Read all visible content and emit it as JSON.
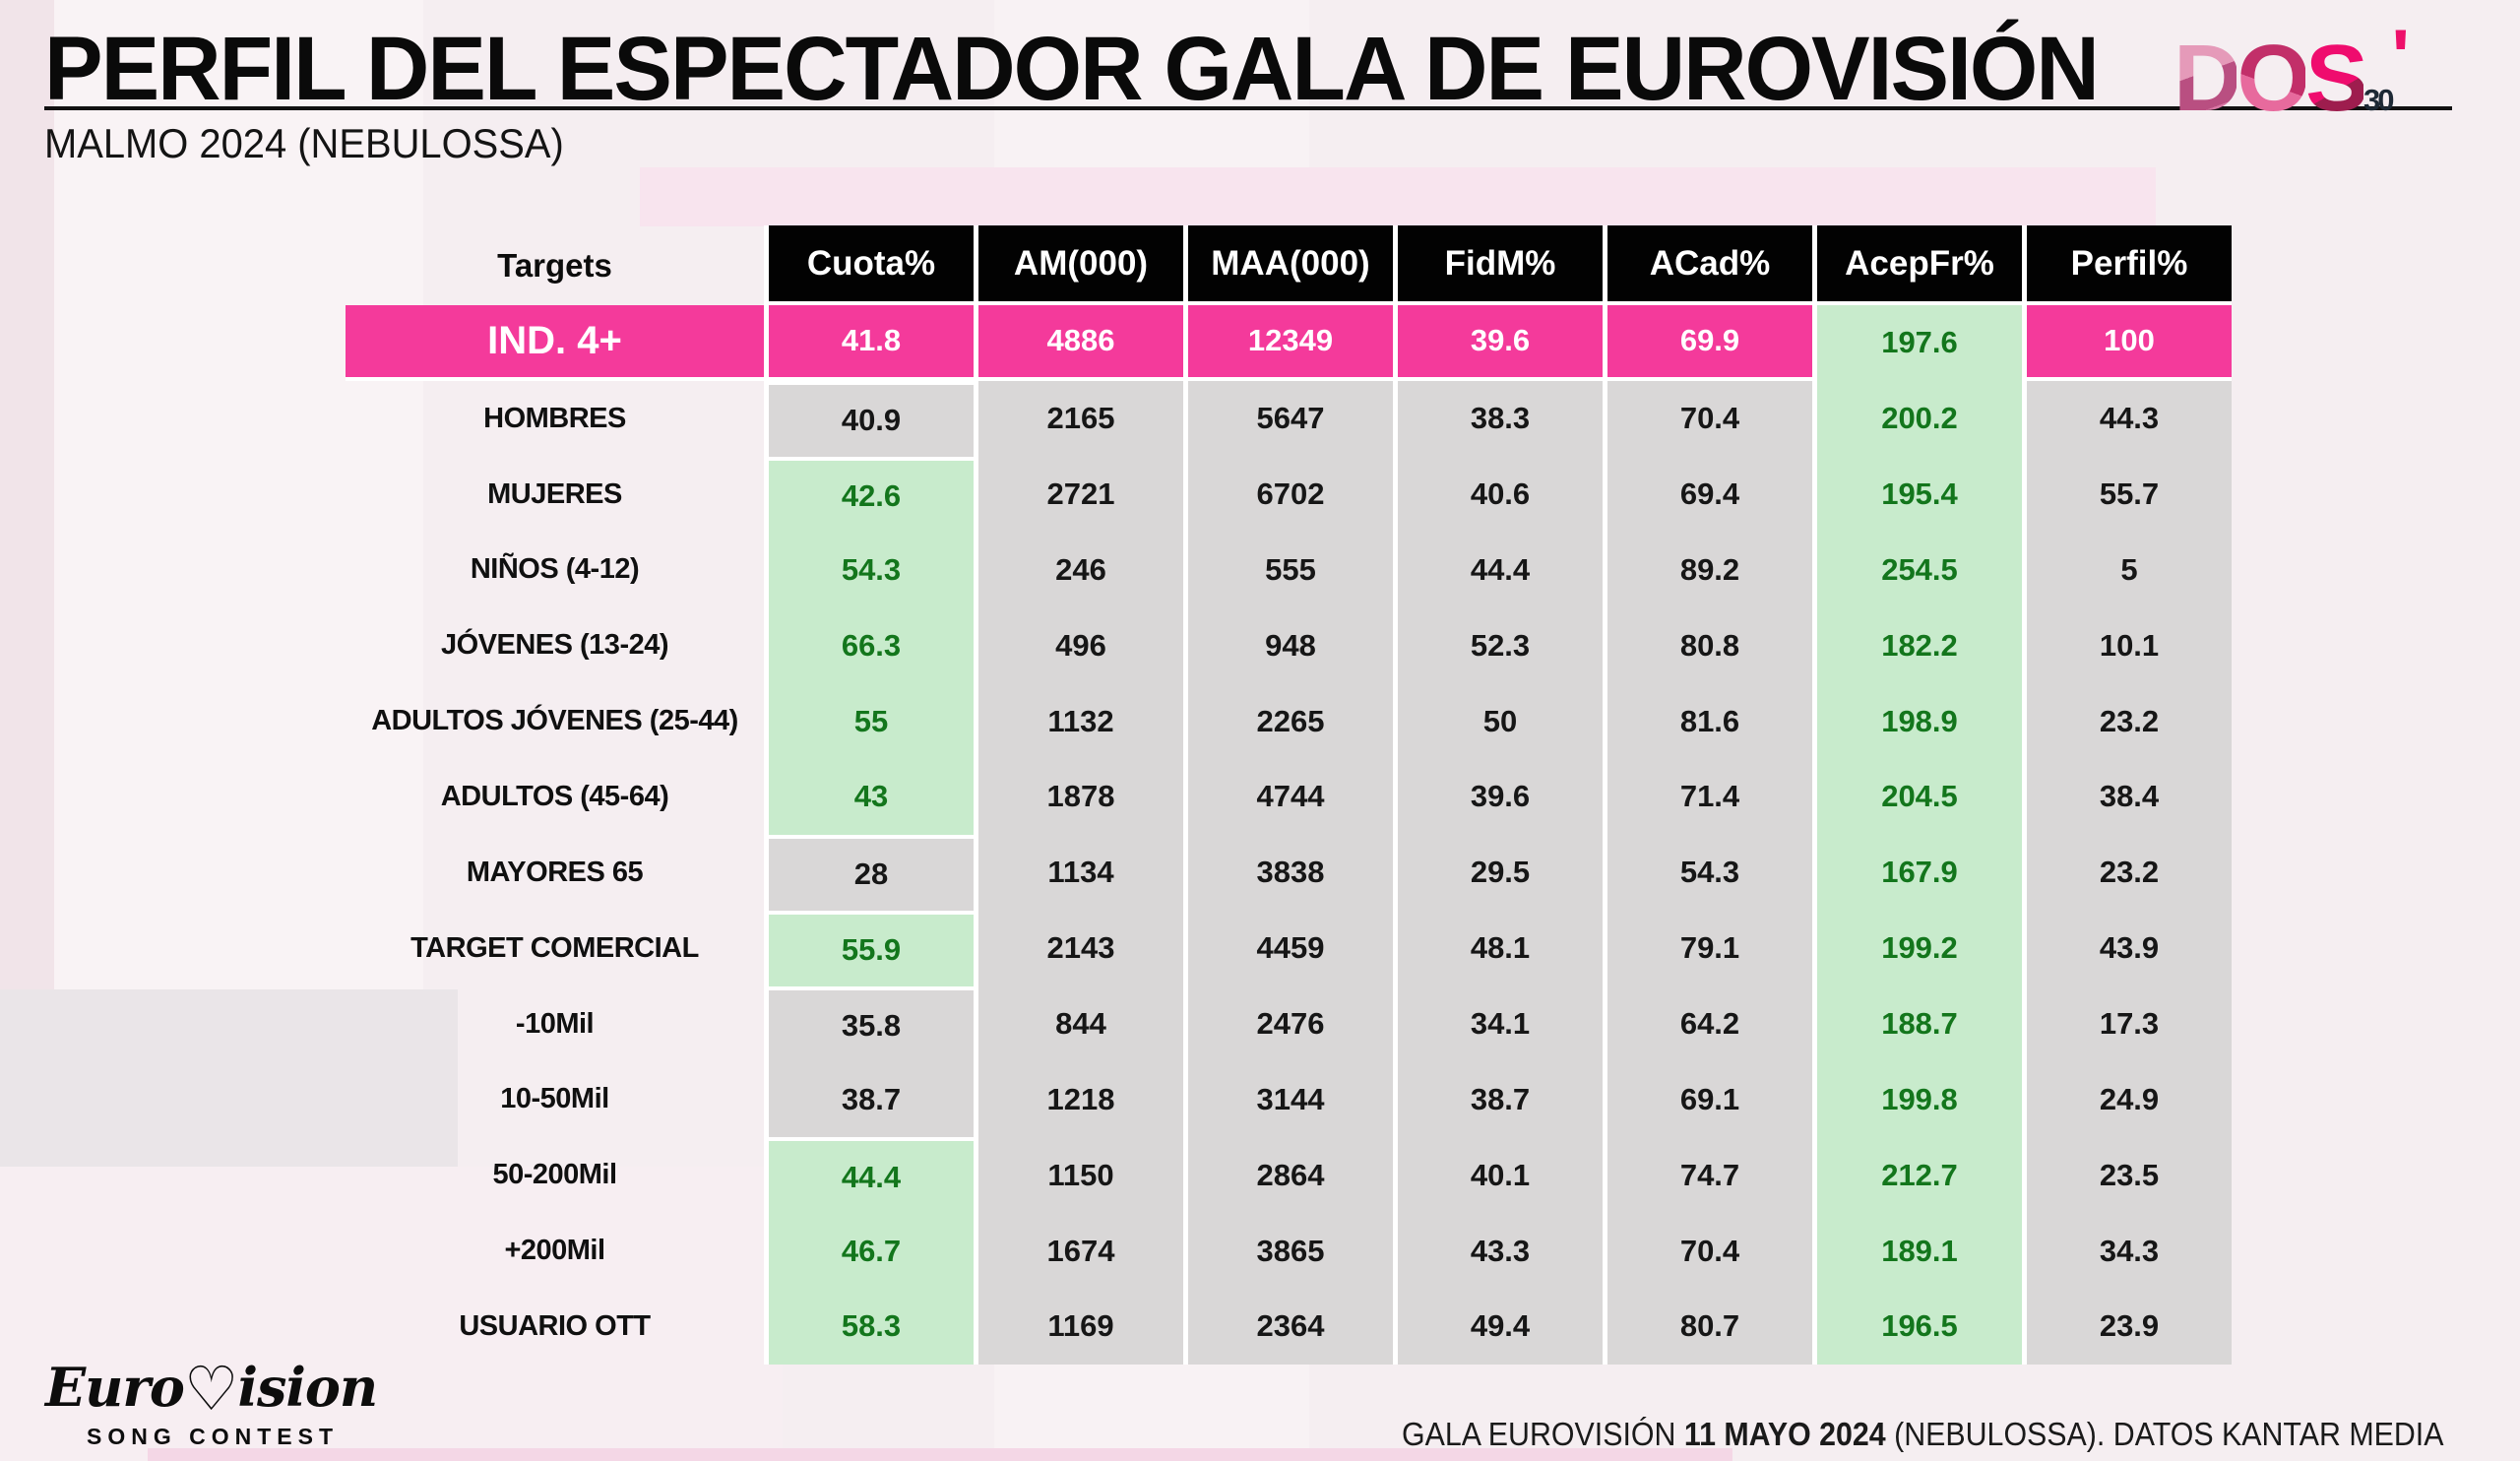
{
  "slide": {
    "title": "PERFIL DEL ESPECTADOR GALA DE EUROVISIÓN",
    "subtitle": "MALMO 2024 (NEBULOSSA)",
    "footnote": {
      "prefix": "GALA EUROVISIÓN ",
      "bold": "11 MAYO 2024",
      "suffix": " (NEBULOSSA). DATOS KANTAR MEDIA"
    }
  },
  "brand": {
    "dos30": {
      "d": "D",
      "o": "O",
      "s": "S",
      "num": "30",
      "tick": "'"
    },
    "eurovision": {
      "pre": "Euro",
      "heart": "♡",
      "post": "ision",
      "sub": "SONG CONTEST"
    }
  },
  "table": {
    "target_header": "Targets",
    "columns": [
      "Cuota%",
      "AM(000)",
      "MAA(000)",
      "FidM%",
      "ACad%",
      "AcepFr%",
      "Perfil%"
    ],
    "rows": [
      {
        "label": "IND. 4+",
        "cuota": "41.8",
        "am": "4886",
        "maa": "12349",
        "fidm": "39.6",
        "acad": "69.9",
        "acepfr": "197.6",
        "perfil": "100",
        "highlight": true,
        "cuota_green": false
      },
      {
        "label": "HOMBRES",
        "cuota": "40.9",
        "am": "2165",
        "maa": "5647",
        "fidm": "38.3",
        "acad": "70.4",
        "acepfr": "200.2",
        "perfil": "44.3",
        "highlight": false,
        "cuota_green": false
      },
      {
        "label": "MUJERES",
        "cuota": "42.6",
        "am": "2721",
        "maa": "6702",
        "fidm": "40.6",
        "acad": "69.4",
        "acepfr": "195.4",
        "perfil": "55.7",
        "highlight": false,
        "cuota_green": true
      },
      {
        "label": "NIÑOS (4-12)",
        "cuota": "54.3",
        "am": "246",
        "maa": "555",
        "fidm": "44.4",
        "acad": "89.2",
        "acepfr": "254.5",
        "perfil": "5",
        "highlight": false,
        "cuota_green": true
      },
      {
        "label": "JÓVENES (13-24)",
        "cuota": "66.3",
        "am": "496",
        "maa": "948",
        "fidm": "52.3",
        "acad": "80.8",
        "acepfr": "182.2",
        "perfil": "10.1",
        "highlight": false,
        "cuota_green": true
      },
      {
        "label": "ADULTOS JÓVENES (25-44)",
        "cuota": "55",
        "am": "1132",
        "maa": "2265",
        "fidm": "50",
        "acad": "81.6",
        "acepfr": "198.9",
        "perfil": "23.2",
        "highlight": false,
        "cuota_green": true
      },
      {
        "label": "ADULTOS (45-64)",
        "cuota": "43",
        "am": "1878",
        "maa": "4744",
        "fidm": "39.6",
        "acad": "71.4",
        "acepfr": "204.5",
        "perfil": "38.4",
        "highlight": false,
        "cuota_green": true
      },
      {
        "label": "MAYORES 65",
        "cuota": "28",
        "am": "1134",
        "maa": "3838",
        "fidm": "29.5",
        "acad": "54.3",
        "acepfr": "167.9",
        "perfil": "23.2",
        "highlight": false,
        "cuota_green": false
      },
      {
        "label": "TARGET COMERCIAL",
        "cuota": "55.9",
        "am": "2143",
        "maa": "4459",
        "fidm": "48.1",
        "acad": "79.1",
        "acepfr": "199.2",
        "perfil": "43.9",
        "highlight": false,
        "cuota_green": true
      },
      {
        "label": "-10Mil",
        "cuota": "35.8",
        "am": "844",
        "maa": "2476",
        "fidm": "34.1",
        "acad": "64.2",
        "acepfr": "188.7",
        "perfil": "17.3",
        "highlight": false,
        "cuota_green": false
      },
      {
        "label": "10-50Mil",
        "cuota": "38.7",
        "am": "1218",
        "maa": "3144",
        "fidm": "38.7",
        "acad": "69.1",
        "acepfr": "199.8",
        "perfil": "24.9",
        "highlight": false,
        "cuota_green": false
      },
      {
        "label": "50-200Mil",
        "cuota": "44.4",
        "am": "1150",
        "maa": "2864",
        "fidm": "40.1",
        "acad": "74.7",
        "acepfr": "212.7",
        "perfil": "23.5",
        "highlight": false,
        "cuota_green": true
      },
      {
        "label": "+200Mil",
        "cuota": "46.7",
        "am": "1674",
        "maa": "3865",
        "fidm": "43.3",
        "acad": "70.4",
        "acepfr": "189.1",
        "perfil": "34.3",
        "highlight": false,
        "cuota_green": true
      },
      {
        "label": "USUARIO OTT",
        "cuota": "58.3",
        "am": "1169",
        "maa": "2364",
        "fidm": "49.4",
        "acad": "80.7",
        "acepfr": "196.5",
        "perfil": "23.9",
        "highlight": false,
        "cuota_green": true
      }
    ]
  },
  "colors": {
    "highlight_pink": "#f43a9b",
    "cell_gray": "#d9d7d7",
    "cell_green": "#c8ebcc",
    "green_text": "#13761c",
    "header_bg": "#020202"
  }
}
